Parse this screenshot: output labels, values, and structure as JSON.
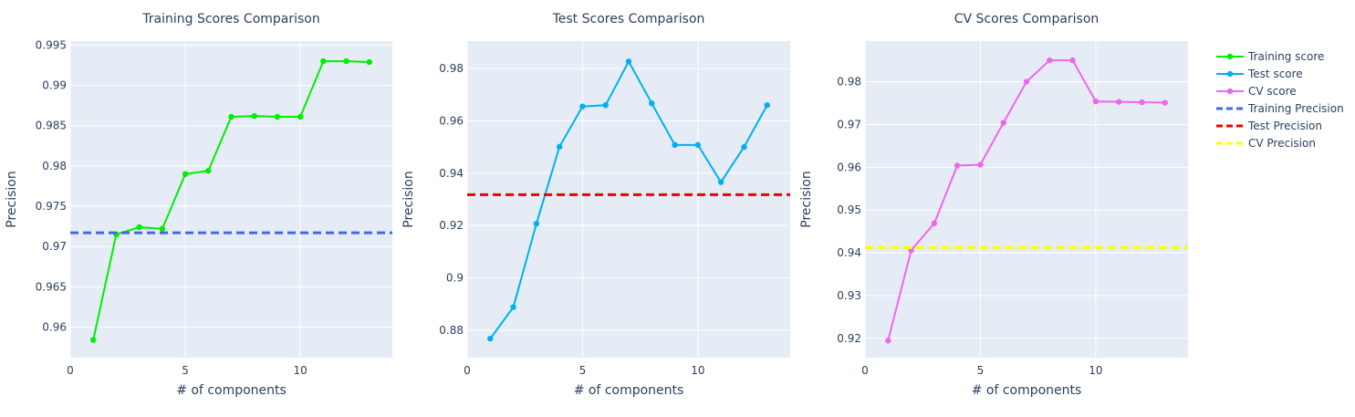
{
  "chart_data": [
    {
      "type": "line",
      "title": "Training Scores Comparison",
      "xlabel": "# of components",
      "ylabel": "Precision",
      "xlim": [
        0,
        14
      ],
      "ylim": [
        0.9562,
        0.9955
      ],
      "xticks": [
        "0",
        "5",
        "10"
      ],
      "yticks": [
        "0.96",
        "0.965",
        "0.97",
        "0.975",
        "0.98",
        "0.985",
        "0.99",
        "0.995"
      ],
      "grid": true,
      "series": [
        {
          "name": "Training score",
          "color": "#00ee00",
          "x": [
            1,
            2,
            3,
            4,
            5,
            6,
            7,
            8,
            9,
            10,
            11,
            12,
            13
          ],
          "y": [
            0.9584,
            0.9715,
            0.9724,
            0.9722,
            0.979,
            0.9794,
            0.9861,
            0.9862,
            0.9861,
            0.9861,
            0.993,
            0.993,
            0.9929
          ]
        }
      ],
      "hline": {
        "name": "Training Precision",
        "y": 0.9717,
        "color": "#4169e1"
      }
    },
    {
      "type": "line",
      "title": "Test Scores Comparison",
      "xlabel": "# of components",
      "ylabel": "Precision",
      "xlim": [
        0,
        14
      ],
      "ylim": [
        0.8695,
        0.9905
      ],
      "xticks": [
        "0",
        "5",
        "10"
      ],
      "yticks": [
        "0.88",
        "0.9",
        "0.92",
        "0.94",
        "0.96",
        "0.98"
      ],
      "grid": true,
      "series": [
        {
          "name": "Test score",
          "color": "#00b0f0",
          "x": [
            1,
            2,
            3,
            4,
            5,
            6,
            7,
            8,
            9,
            10,
            11,
            12,
            13
          ],
          "y": [
            0.8768,
            0.8888,
            0.9207,
            0.9501,
            0.9655,
            0.966,
            0.9827,
            0.9667,
            0.9508,
            0.9508,
            0.9366,
            0.95,
            0.966
          ]
        }
      ],
      "hline": {
        "name": "Test Precision",
        "y": 0.9318,
        "color": "#ee0000"
      }
    },
    {
      "type": "line",
      "title": "CV Scores Comparison",
      "xlabel": "# of components",
      "ylabel": "Precision",
      "xlim": [
        0,
        14
      ],
      "ylim": [
        0.9155,
        0.9895
      ],
      "xticks": [
        "0",
        "5",
        "10"
      ],
      "yticks": [
        "0.92",
        "0.93",
        "0.94",
        "0.95",
        "0.96",
        "0.97",
        "0.98"
      ],
      "grid": true,
      "series": [
        {
          "name": "CV score",
          "color": "#ee66ee",
          "x": [
            1,
            2,
            3,
            4,
            5,
            6,
            7,
            8,
            9,
            10,
            11,
            12,
            13
          ],
          "y": [
            0.9195,
            0.9406,
            0.9469,
            0.9604,
            0.9606,
            0.9704,
            0.98,
            0.985,
            0.985,
            0.9754,
            0.9753,
            0.9752,
            0.9751
          ]
        }
      ],
      "hline": {
        "name": "CV Precision",
        "y": 0.9412,
        "color": "#ffff00"
      }
    }
  ],
  "legend": {
    "placement": "right",
    "items": [
      {
        "label": "Training score",
        "color": "#00ee00",
        "style": "line-marker"
      },
      {
        "label": "Test score",
        "color": "#00b0f0",
        "style": "line-marker"
      },
      {
        "label": "CV score",
        "color": "#ee66ee",
        "style": "line-marker"
      },
      {
        "label": "Training Precision",
        "color": "#4169e1",
        "style": "dash"
      },
      {
        "label": "Test Precision",
        "color": "#ee0000",
        "style": "dash"
      },
      {
        "label": "CV Precision",
        "color": "#ffff00",
        "style": "dash"
      }
    ]
  }
}
